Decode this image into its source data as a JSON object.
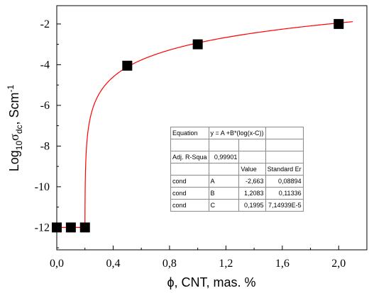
{
  "chart_data": {
    "type": "scatter",
    "xlabel": "ϕ, CNT, mas. %",
    "ylabel_parts": [
      "Log",
      "10",
      "σ",
      "dc",
      ", Scm",
      "-1"
    ],
    "xlim": [
      0.0,
      2.2
    ],
    "ylim": [
      -13.1,
      -1.1
    ],
    "x_ticks": [
      0.0,
      0.4,
      0.8,
      1.2,
      1.6,
      2.0
    ],
    "x_tick_labels": [
      "0,0",
      "0,4",
      "0,8",
      "1,2",
      "1,6",
      "2,0"
    ],
    "y_ticks": [
      -2,
      -4,
      -6,
      -8,
      -10,
      -12
    ],
    "y_tick_labels": [
      "-2",
      "-4",
      "-6",
      "-8",
      "-10",
      "-12"
    ],
    "points": [
      {
        "x": 0.0,
        "y": -12
      },
      {
        "x": 0.1,
        "y": -12
      },
      {
        "x": 0.2,
        "y": -12
      },
      {
        "x": 0.5,
        "y": -4.05
      },
      {
        "x": 1.0,
        "y": -3.0
      },
      {
        "x": 2.0,
        "y": -2.0
      }
    ],
    "fit": {
      "A": -2.663,
      "B": 1.2083,
      "C": 0.1995,
      "color": "#ff0000"
    },
    "marker_color": "#000000",
    "grid": false
  },
  "fit_table": {
    "equation_label": "Equation",
    "equation": "y = A +B*(log(x-C))",
    "adj_r_label": "Adj. R-Squa",
    "adj_r_value": "0,99901",
    "value_header": "Value",
    "stderr_header": "Standard Er",
    "rows": [
      {
        "name": "cond",
        "param": "A",
        "value": "-2,663",
        "stderr": "0,08894"
      },
      {
        "name": "cond",
        "param": "B",
        "value": "1,2083",
        "stderr": "0,11336"
      },
      {
        "name": "cond",
        "param": "C",
        "value": "0,1995",
        "stderr": "7,14939E-5"
      }
    ]
  }
}
